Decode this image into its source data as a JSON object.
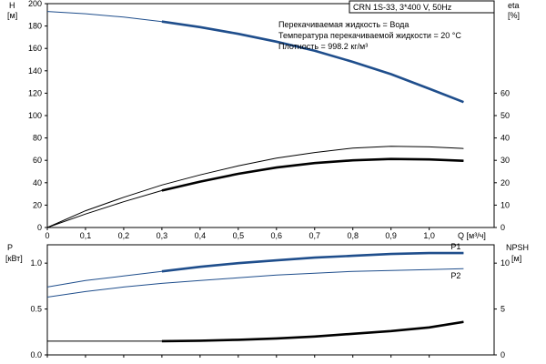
{
  "chart_data": [
    {
      "type": "line",
      "name_id": "performance",
      "header": "CRN 1S-33, 3*400 V, 50Hz",
      "info": [
        "Перекачиваемая жидкость = Вода",
        "Температура перекачиваемой жидкости = 20 °C",
        "Плотность = 998.2 кг/м³"
      ],
      "y_left_label": [
        "H",
        "[м]"
      ],
      "y_right_label": [
        "eta",
        "[%]"
      ],
      "x_label": "Q [м³/ч]",
      "x_ticks": [
        "0",
        "0,1",
        "0,2",
        "0,3",
        "0,4",
        "0,5",
        "0,6",
        "0,7",
        "0,8",
        "0,9",
        "1,0"
      ],
      "x_range": [
        0,
        1.17
      ],
      "y_left_ticks": [
        "0",
        "20",
        "40",
        "60",
        "80",
        "100",
        "120",
        "140",
        "160",
        "180",
        "200"
      ],
      "y_left_range": [
        0,
        200
      ],
      "y_right_ticks": [
        "0",
        "10",
        "20",
        "30",
        "40",
        "50",
        "60"
      ],
      "y_right_range": [
        0,
        100
      ],
      "colors": {
        "head": "#1f4e8c",
        "eff": "#000000"
      },
      "series": [
        {
          "id": "head",
          "axis": "left",
          "color": "#1f4e8c",
          "x": [
            0,
            0.1,
            0.2,
            0.3,
            0.4,
            0.5,
            0.6,
            0.7,
            0.8,
            0.9,
            1.0,
            1.09
          ],
          "y": [
            193,
            191,
            188,
            184,
            179,
            173,
            166,
            158,
            148,
            137,
            124,
            112
          ],
          "bold_from": 0.3
        },
        {
          "id": "eff_upper",
          "axis": "right",
          "color": "#000000",
          "x": [
            0,
            0.1,
            0.2,
            0.3,
            0.4,
            0.5,
            0.6,
            0.7,
            0.8,
            0.9,
            1.0,
            1.09
          ],
          "y": [
            0,
            7.5,
            13.5,
            19,
            23.5,
            27.5,
            31,
            33.5,
            35.5,
            36.3,
            36,
            35.3
          ],
          "bold_from": 99
        },
        {
          "id": "eff_lower",
          "axis": "right",
          "color": "#000000",
          "x": [
            0,
            0.1,
            0.2,
            0.3,
            0.4,
            0.5,
            0.6,
            0.7,
            0.8,
            0.9,
            1.0,
            1.09
          ],
          "y": [
            0,
            6,
            11.5,
            16.5,
            20.5,
            24,
            26.8,
            28.8,
            30,
            30.6,
            30.4,
            29.8
          ],
          "bold_from": 0.3
        }
      ]
    },
    {
      "type": "line",
      "name_id": "power-npsh",
      "y_left_label": [
        "P",
        "[кВт]"
      ],
      "y_right_label": [
        "NPSH",
        "[м]"
      ],
      "x_range": [
        0,
        1.17
      ],
      "y_left_ticks": [
        "0.0",
        "0.5",
        "1.0"
      ],
      "y_left_range": [
        0,
        1.2
      ],
      "y_right_ticks": [
        "0",
        "5",
        "10"
      ],
      "y_right_range": [
        0,
        12
      ],
      "series": [
        {
          "id": "P1",
          "name": "P1",
          "axis": "left",
          "color": "#1f4e8c",
          "x": [
            0,
            0.1,
            0.2,
            0.3,
            0.4,
            0.5,
            0.6,
            0.7,
            0.8,
            0.9,
            1.0,
            1.09
          ],
          "y": [
            0.74,
            0.81,
            0.86,
            0.91,
            0.96,
            1.0,
            1.03,
            1.06,
            1.08,
            1.1,
            1.11,
            1.11
          ],
          "bold_from": 0.3
        },
        {
          "id": "P2",
          "name": "P2",
          "axis": "left",
          "color": "#1f4e8c",
          "x": [
            0,
            0.1,
            0.2,
            0.3,
            0.4,
            0.5,
            0.6,
            0.7,
            0.8,
            0.9,
            1.0,
            1.09
          ],
          "y": [
            0.63,
            0.69,
            0.74,
            0.78,
            0.81,
            0.84,
            0.87,
            0.89,
            0.91,
            0.92,
            0.93,
            0.94
          ],
          "bold_from": 99
        },
        {
          "id": "npsh",
          "axis": "right",
          "color": "#000000",
          "x": [
            0,
            0.1,
            0.2,
            0.3,
            0.4,
            0.5,
            0.6,
            0.7,
            0.8,
            0.9,
            1.0,
            1.09
          ],
          "y": [
            1.5,
            1.5,
            1.5,
            1.5,
            1.55,
            1.65,
            1.8,
            2.0,
            2.3,
            2.6,
            3.0,
            3.6
          ],
          "bold_from": 0.3
        }
      ]
    }
  ]
}
